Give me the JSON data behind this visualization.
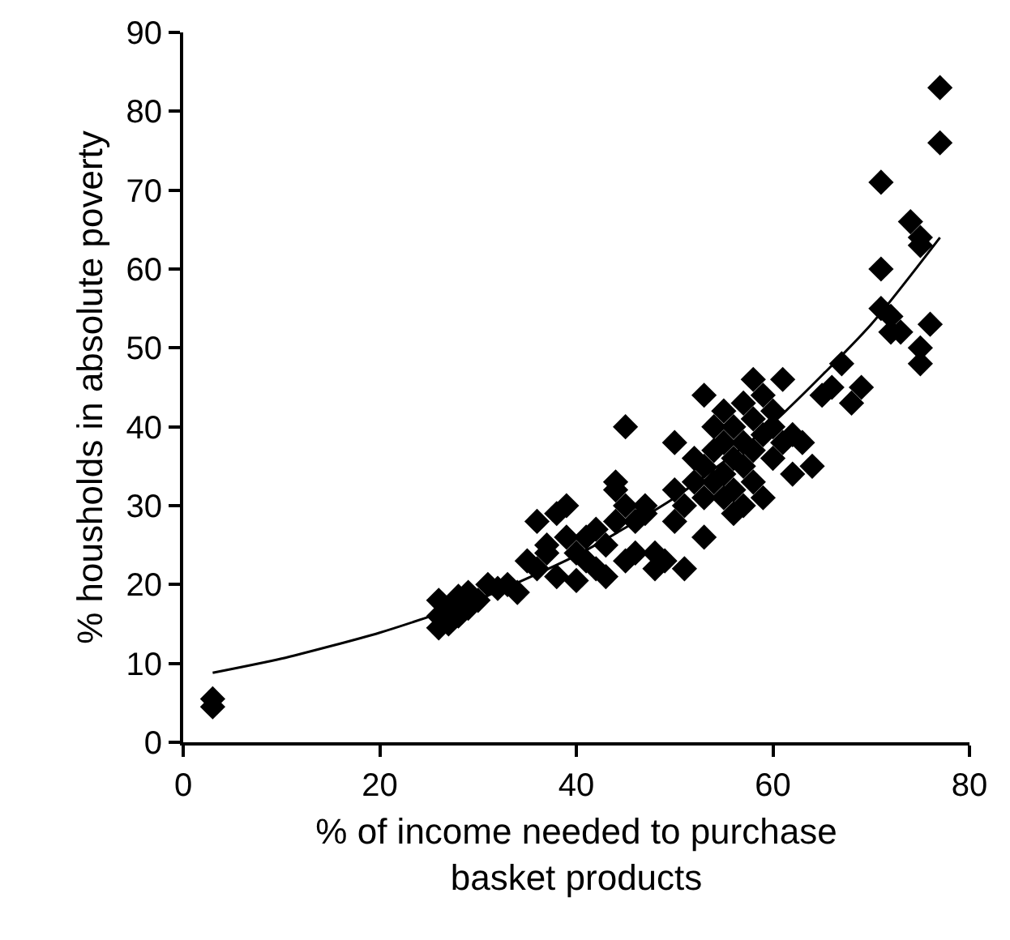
{
  "chart_data": {
    "type": "scatter",
    "xlabel": "% of income needed to purchase basket products",
    "ylabel": "% housholds in absolute poverty",
    "xlim": [
      0,
      80
    ],
    "ylim": [
      0,
      90
    ],
    "xticks": [
      0,
      20,
      40,
      60,
      80
    ],
    "yticks": [
      0,
      10,
      20,
      30,
      40,
      50,
      60,
      70,
      80,
      90
    ],
    "grid": false,
    "marker": "diamond",
    "series": [
      {
        "color": "#000000",
        "x": [
          3,
          3,
          26,
          26,
          26,
          27,
          27,
          28,
          28,
          29,
          29,
          30,
          31,
          32,
          33,
          34,
          35,
          36,
          36,
          37,
          37,
          38,
          38,
          39,
          39,
          40,
          40,
          41,
          41,
          42,
          42,
          43,
          43,
          44,
          44,
          44,
          45,
          45,
          45,
          46,
          46,
          47,
          47,
          48,
          48,
          49,
          50,
          50,
          50,
          51,
          51,
          52,
          52,
          53,
          53,
          53,
          53,
          54,
          54,
          54,
          55,
          55,
          55,
          55,
          56,
          56,
          56,
          56,
          57,
          57,
          57,
          57,
          58,
          58,
          58,
          58,
          59,
          59,
          59,
          60,
          60,
          60,
          61,
          61,
          62,
          62,
          63,
          64,
          65,
          66,
          67,
          68,
          69,
          71,
          71,
          71,
          72,
          72,
          73,
          74,
          75,
          75,
          75,
          75,
          76,
          77,
          77
        ],
        "values": [
          5.5,
          4.5,
          18,
          16,
          14.5,
          17,
          15,
          18.5,
          16,
          17,
          19,
          18,
          20,
          19.5,
          20,
          19,
          23,
          28,
          22,
          24,
          25,
          29,
          21,
          26,
          30,
          24,
          20.5,
          23,
          26,
          22,
          27,
          25,
          21,
          33,
          28,
          32,
          30,
          40,
          23,
          28,
          24,
          29,
          30,
          22,
          24,
          23,
          38,
          32,
          28,
          22,
          30,
          33,
          36,
          26,
          44,
          35,
          31,
          40,
          37,
          33,
          38,
          34,
          31,
          42,
          36,
          40,
          32,
          29,
          43,
          38,
          35,
          30,
          41,
          46,
          37,
          33,
          44,
          39,
          31,
          40,
          42,
          36,
          46,
          38,
          34,
          39,
          38,
          35,
          44,
          45,
          48,
          43,
          45,
          60,
          55,
          71,
          54,
          52,
          52,
          66,
          63,
          64,
          50,
          48,
          53,
          83,
          76
        ]
      },
      {
        "type": "line",
        "color": "#000000",
        "marker": "none",
        "x": [
          3,
          10,
          20,
          30,
          40,
          50,
          60,
          70,
          77
        ],
        "values": [
          8.8,
          10.6,
          13.9,
          18.1,
          23.7,
          31.0,
          40.5,
          53.0,
          64.0
        ]
      }
    ]
  }
}
